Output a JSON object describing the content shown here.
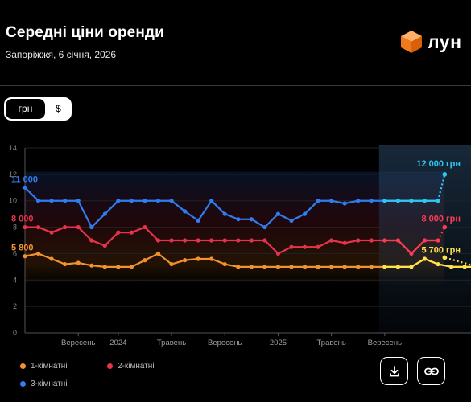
{
  "header": {
    "title": "Середні ціни оренди",
    "subtitle": "Запоріжжя, 6 січня, 2026",
    "logo_text": "лун"
  },
  "currency_toggle": {
    "options": [
      "грн",
      "$"
    ],
    "selected": "грн"
  },
  "buttons": {
    "download_icon": "download-icon",
    "link_icon": "link-icon"
  },
  "colors": {
    "one_room": "#f2922e",
    "two_room": "#e5334b",
    "three_room": "#2f7df0",
    "forecast_two": "#ff3b52",
    "forecast_one": "#ffe14a",
    "forecast_three": "#2ec7f2"
  },
  "chart_data": {
    "type": "line",
    "ylim": [
      0,
      14
    ],
    "yticks": [
      0,
      2,
      4,
      6,
      8,
      10,
      12,
      14
    ],
    "x_tick_labels": [
      "Вересень",
      "2024",
      "Травень",
      "Вересень",
      "2025",
      "Травень",
      "Вересень"
    ],
    "series": [
      {
        "name": "1-кімнатні",
        "values": [
          5.8,
          6.0,
          5.6,
          5.2,
          5.3,
          5.1,
          5.0,
          5.0,
          5.0,
          5.5,
          6.0,
          5.2,
          5.5,
          5.6,
          5.6,
          5.2,
          5.0,
          5.0,
          5.0,
          5.0,
          5.0,
          5.0,
          5.0,
          5.0,
          5.0,
          5.0,
          5.0,
          5.0,
          5.0,
          5.0,
          5.6,
          5.2,
          5.0,
          5.0,
          5.0
        ],
        "start_label": "5 800",
        "forecast": 5.7,
        "forecast_label": "5 700 грн"
      },
      {
        "name": "2-кімнатні",
        "values": [
          8.0,
          8.0,
          7.6,
          8.0,
          8.0,
          7.0,
          6.6,
          7.6,
          7.6,
          8.0,
          7.0,
          7.0,
          7.0,
          7.0,
          7.0,
          7.0,
          7.0,
          7.0,
          7.0,
          6.0,
          6.5,
          6.5,
          6.5,
          7.0,
          6.8,
          7.0,
          7.0,
          7.0,
          7.0,
          6.0,
          7.0,
          7.0
        ],
        "start_label": "8 000",
        "forecast": 8.0,
        "forecast_label": "8 000 грн"
      },
      {
        "name": "3-кімнатні",
        "values": [
          11.0,
          10.0,
          10.0,
          10.0,
          10.0,
          8.0,
          9.0,
          10.0,
          10.0,
          10.0,
          10.0,
          10.0,
          9.2,
          8.5,
          10.0,
          9.0,
          8.6,
          8.6,
          8.0,
          9.0,
          8.5,
          9.0,
          10.0,
          10.0,
          9.8,
          10.0,
          10.0,
          10.0,
          10.0,
          10.0,
          10.0,
          10.0
        ],
        "start_label": "11 000",
        "forecast": 12.0,
        "forecast_label": "12 000 грн"
      }
    ]
  }
}
